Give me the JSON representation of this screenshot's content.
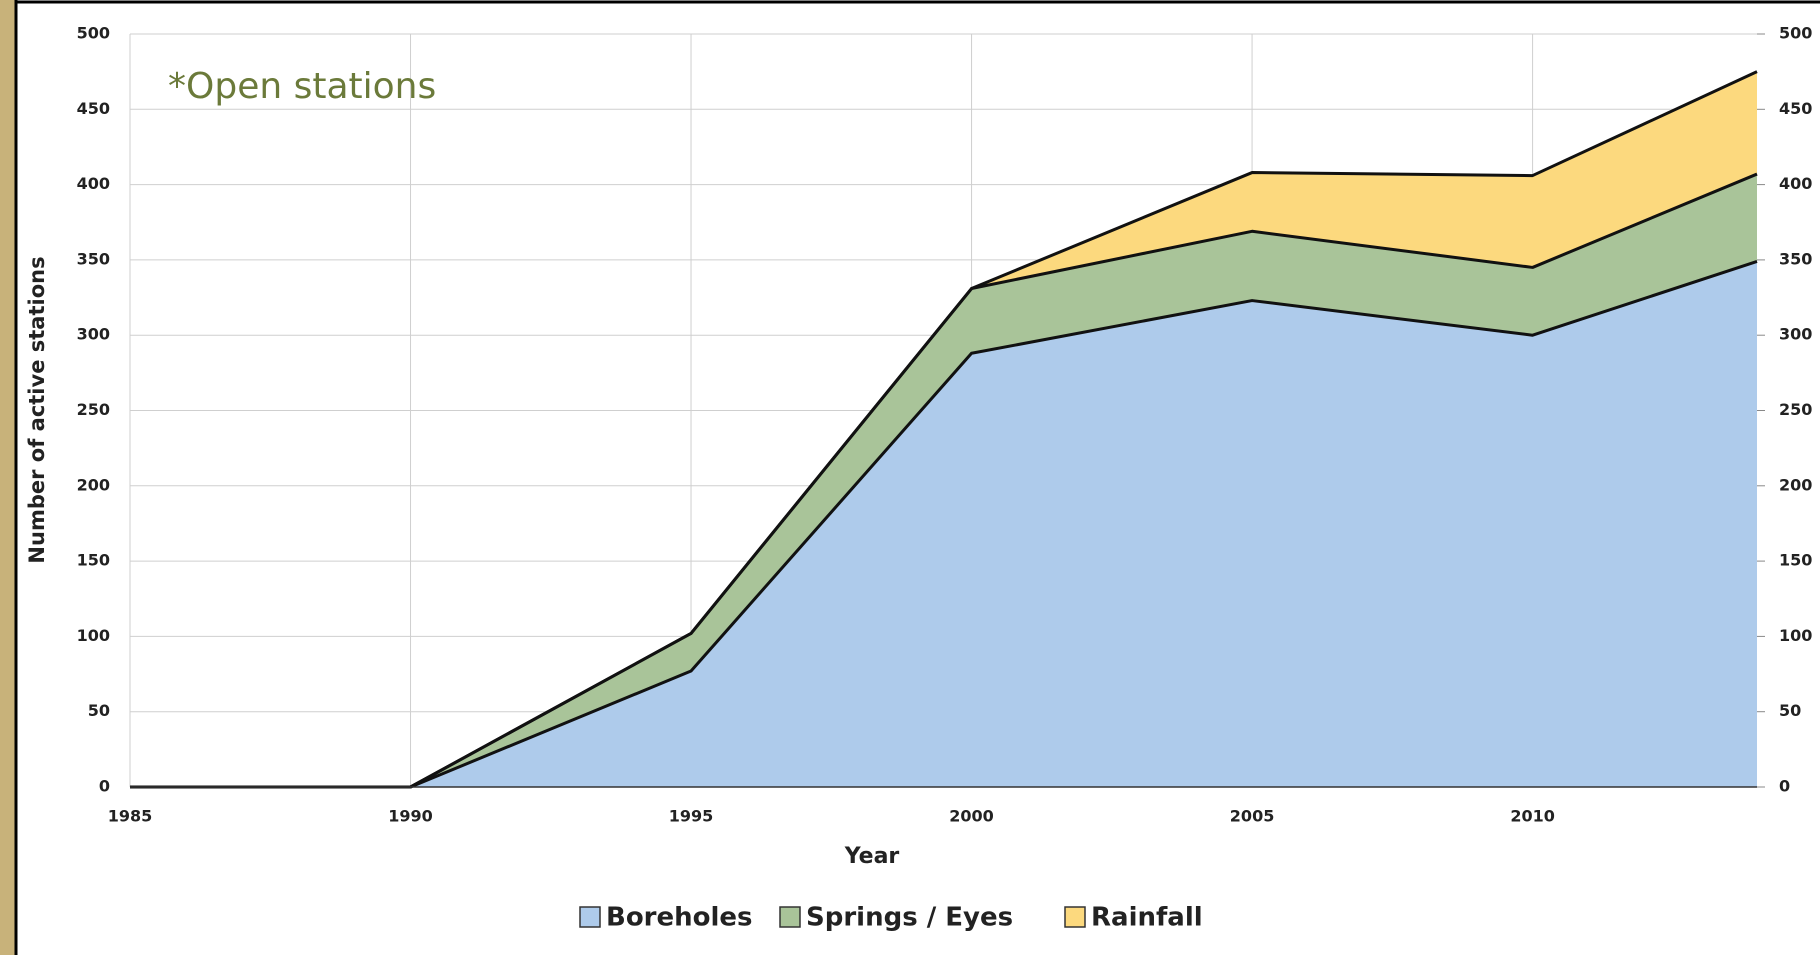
{
  "chart_data": {
    "type": "stacked-area",
    "annotation": "*Open stations",
    "x_label": "Year",
    "y_label": "Number of active stations",
    "x": [
      1985,
      1990,
      1995,
      2000,
      2005,
      2010,
      2014
    ],
    "xlim": [
      1985,
      2014
    ],
    "xticks": [
      1985,
      1990,
      1995,
      2000,
      2005,
      2010
    ],
    "ylim": [
      0,
      500
    ],
    "yticks": [
      0,
      50,
      100,
      150,
      200,
      250,
      300,
      350,
      400,
      450,
      500
    ],
    "y2lim": [
      0,
      500
    ],
    "y2ticks": [
      0,
      50,
      100,
      150,
      200,
      250,
      300,
      350,
      400,
      450,
      500
    ],
    "grid": true,
    "legend": "bottom",
    "series": [
      {
        "name": "Boreholes",
        "color": "#aecbeb",
        "values": [
          0,
          0,
          77,
          288,
          323,
          300,
          349
        ]
      },
      {
        "name": "Springs / Eyes",
        "color": "#a9c499",
        "values": [
          0,
          0,
          25,
          43,
          46,
          45,
          58
        ]
      },
      {
        "name": "Rainfall",
        "color": "#fcd97e",
        "values": [
          0,
          0,
          0,
          0,
          39,
          61,
          68
        ]
      }
    ]
  }
}
